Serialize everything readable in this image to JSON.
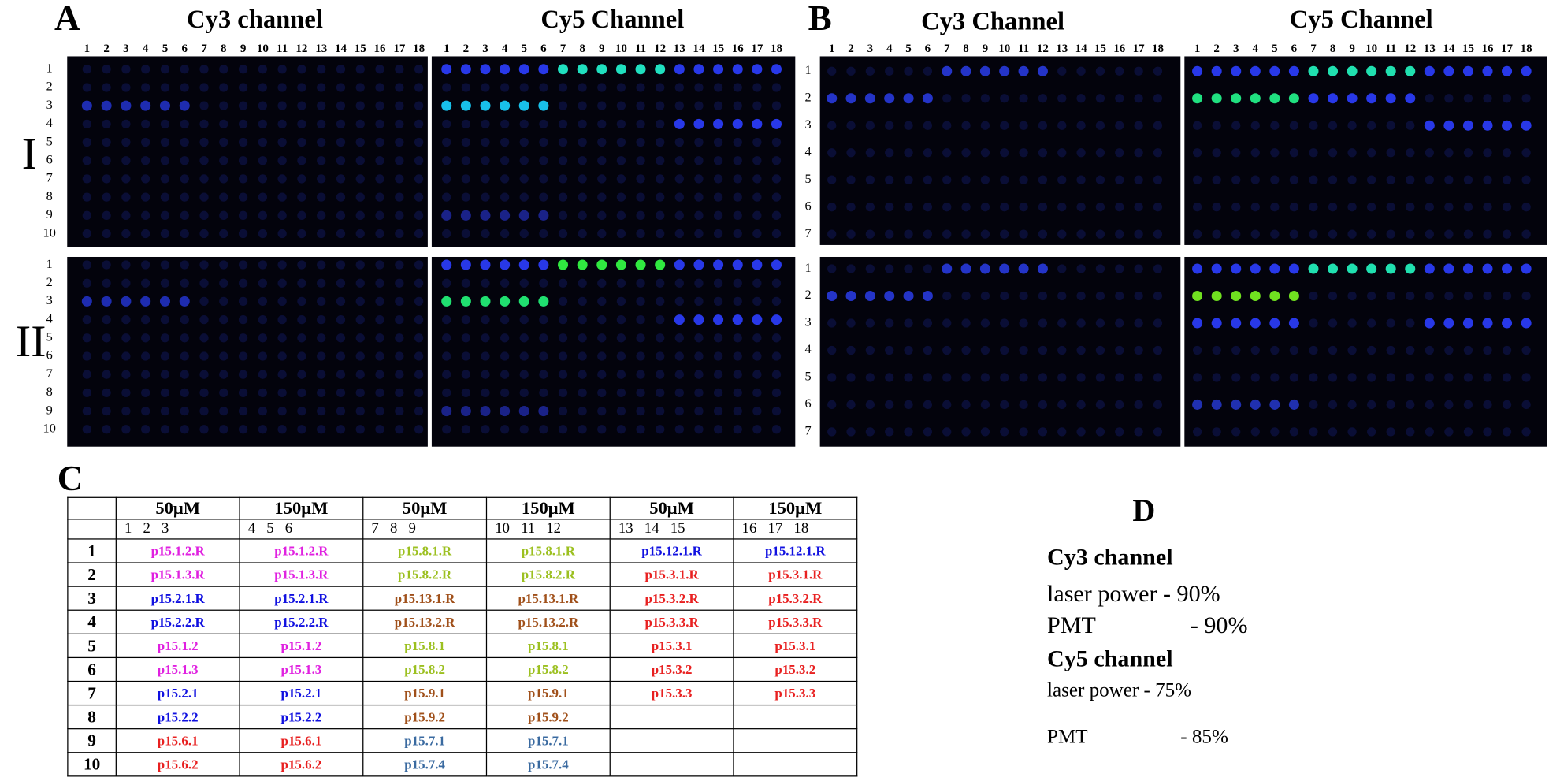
{
  "panel_a": {
    "letter": "A",
    "cy3_title": "Cy3 channel",
    "cy5_title": "Cy5 Channel",
    "cy3_columns": [
      "1",
      "2",
      "3",
      "4",
      "5",
      "6",
      "7",
      "8",
      "9",
      "10",
      "11",
      "12",
      "13",
      "14",
      "15",
      "16",
      "17",
      "18"
    ],
    "cy5_columns": [
      "1",
      "2",
      "3",
      "4",
      "5",
      "6",
      "7",
      "8",
      "9",
      "10",
      "11",
      "12",
      "13",
      "14",
      "15",
      "16",
      "17",
      "18"
    ],
    "row_I_label": "I",
    "row_II_label": "II",
    "rows_I": [
      "1",
      "2",
      "3",
      "4",
      "5",
      "6",
      "7",
      "8",
      "9",
      "10"
    ],
    "rows_II": [
      "1",
      "2",
      "3",
      "4",
      "5",
      "6",
      "7",
      "8",
      "9",
      "10"
    ]
  },
  "panel_b": {
    "letter": "B",
    "cy3_title": "Cy3 Channel",
    "cy5_title": "Cy5 Channel",
    "cy3_columns": [
      "1",
      "2",
      "3",
      "4",
      "5",
      "6",
      "7",
      "8",
      "9",
      "10",
      "11",
      "12",
      "13",
      "14",
      "15",
      "16",
      "17",
      "18"
    ],
    "cy5_columns": [
      "1",
      "2",
      "3",
      "4",
      "5",
      "6",
      "7",
      "8",
      "9",
      "10",
      "11",
      "12",
      "13",
      "14",
      "15",
      "16",
      "17",
      "18"
    ],
    "rows_I": [
      "1",
      "2",
      "3",
      "4",
      "5",
      "6",
      "7"
    ],
    "rows_II": [
      "1",
      "2",
      "3",
      "4",
      "5",
      "6",
      "7"
    ]
  },
  "panel_c": {
    "letter": "C",
    "header": [
      "50μM",
      "150μM",
      "50μM",
      "150μM",
      "50μM",
      "150μM"
    ],
    "subheader": [
      "1   2   3",
      "4   5   6",
      "7   8   9",
      "10   11   12",
      "13   14   15",
      "16   17   18"
    ],
    "rows": [
      {
        "label": "1",
        "cells": [
          "p15.1.2.R",
          "p15.1.2.R",
          "p15.8.1.R",
          "p15.8.1.R",
          "p15.12.1.R",
          "p15.12.1.R"
        ],
        "colors": [
          "#e020e0",
          "#e020e0",
          "#9cc020",
          "#9cc020",
          "#1010e0",
          "#1010e0"
        ]
      },
      {
        "label": "2",
        "cells": [
          "p15.1.3.R",
          "p15.1.3.R",
          "p15.8.2.R",
          "p15.8.2.R",
          "p15.3.1.R",
          "p15.3.1.R"
        ],
        "colors": [
          "#e020e0",
          "#e020e0",
          "#9cc020",
          "#9cc020",
          "#e82020",
          "#e82020"
        ]
      },
      {
        "label": "3",
        "cells": [
          "p15.2.1.R",
          "p15.2.1.R",
          "p15.13.1.R",
          "p15.13.1.R",
          "p15.3.2.R",
          "p15.3.2.R"
        ],
        "colors": [
          "#1010e0",
          "#1010e0",
          "#a0501a",
          "#a0501a",
          "#e82020",
          "#e82020"
        ]
      },
      {
        "label": "4",
        "cells": [
          "p15.2.2.R",
          "p15.2.2.R",
          "p15.13.2.R",
          "p15.13.2.R",
          "p15.3.3.R",
          "p15.3.3.R"
        ],
        "colors": [
          "#1010e0",
          "#1010e0",
          "#a0501a",
          "#a0501a",
          "#e82020",
          "#e82020"
        ]
      },
      {
        "label": "5",
        "cells": [
          "p15.1.2",
          "p15.1.2",
          "p15.8.1",
          "p15.8.1",
          "p15.3.1",
          "p15.3.1"
        ],
        "colors": [
          "#e020e0",
          "#e020e0",
          "#9cc020",
          "#9cc020",
          "#e82020",
          "#e82020"
        ]
      },
      {
        "label": "6",
        "cells": [
          "p15.1.3",
          "p15.1.3",
          "p15.8.2",
          "p15.8.2",
          "p15.3.2",
          "p15.3.2"
        ],
        "colors": [
          "#e020e0",
          "#e020e0",
          "#9cc020",
          "#9cc020",
          "#e82020",
          "#e82020"
        ]
      },
      {
        "label": "7",
        "cells": [
          "p15.2.1",
          "p15.2.1",
          "p15.9.1",
          "p15.9.1",
          "p15.3.3",
          "p15.3.3"
        ],
        "colors": [
          "#1010e0",
          "#1010e0",
          "#a0501a",
          "#a0501a",
          "#e82020",
          "#e82020"
        ]
      },
      {
        "label": "8",
        "cells": [
          "p15.2.2",
          "p15.2.2",
          "p15.9.2",
          "p15.9.2"
        ],
        "colors": [
          "#1010e0",
          "#1010e0",
          "#a0501a",
          "#a0501a"
        ]
      },
      {
        "label": "9",
        "cells": [
          "p15.6.1",
          "p15.6.1",
          "p15.7.1",
          "p15.7.1"
        ],
        "colors": [
          "#e82020",
          "#e82020",
          "#3a6aa0",
          "#3a6aa0"
        ]
      },
      {
        "label": "10",
        "cells": [
          "p15.6.2",
          "p15.6.2",
          "p15.7.4",
          "p15.7.4"
        ],
        "colors": [
          "#e82020",
          "#e82020",
          "#3a6aa0",
          "#3a6aa0"
        ]
      }
    ]
  },
  "panel_d": {
    "letter": "D",
    "cy3_heading": "Cy3 channel",
    "cy3_laser": "laser power - 90%",
    "cy3_pmt_label": "PMT",
    "cy3_pmt_value": "- 90%",
    "cy5_heading": "Cy5 channel",
    "cy5_laser": "laser power - 75%",
    "cy5_pmt_label": "PMT",
    "cy5_pmt_value": "- 85%"
  }
}
